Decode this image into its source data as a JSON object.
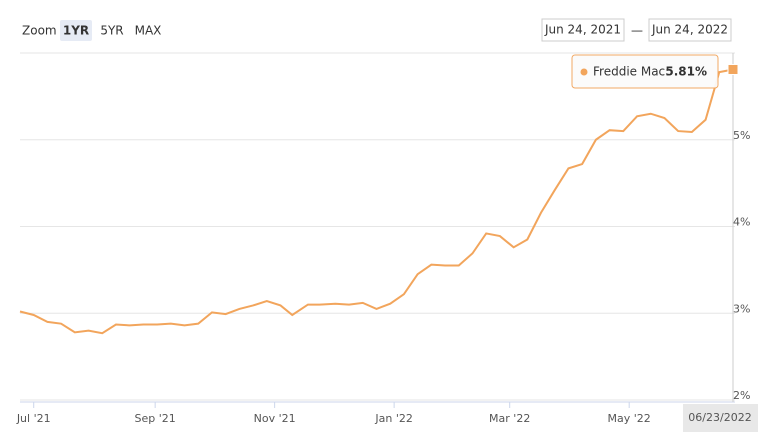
{
  "range_selector": {
    "zoom_label": "Zoom",
    "buttons": [
      "1YR",
      "5YR",
      "MAX"
    ],
    "active": 0,
    "from": "Jun 24, 2021",
    "separator": "—",
    "to": "Jun 24, 2022"
  },
  "chart_data": {
    "type": "line",
    "x": [
      "2021-06-24",
      "2021-07-01",
      "2021-07-08",
      "2021-07-15",
      "2021-07-22",
      "2021-07-29",
      "2021-08-05",
      "2021-08-12",
      "2021-08-19",
      "2021-08-26",
      "2021-09-02",
      "2021-09-09",
      "2021-09-16",
      "2021-09-23",
      "2021-09-30",
      "2021-10-07",
      "2021-10-14",
      "2021-10-21",
      "2021-10-28",
      "2021-11-04",
      "2021-11-10",
      "2021-11-18",
      "2021-11-24",
      "2021-12-02",
      "2021-12-09",
      "2021-12-16",
      "2021-12-23",
      "2021-12-30",
      "2022-01-06",
      "2022-01-13",
      "2022-01-20",
      "2022-01-27",
      "2022-02-03",
      "2022-02-10",
      "2022-02-17",
      "2022-02-24",
      "2022-03-03",
      "2022-03-10",
      "2022-03-17",
      "2022-03-24",
      "2022-03-31",
      "2022-04-07",
      "2022-04-14",
      "2022-04-21",
      "2022-04-28",
      "2022-05-05",
      "2022-05-12",
      "2022-05-19",
      "2022-05-26",
      "2022-06-02",
      "2022-06-09",
      "2022-06-16",
      "2022-06-23"
    ],
    "series": [
      {
        "name": "Freddie Mac",
        "color": "#f2a55c",
        "values": [
          3.02,
          2.98,
          2.9,
          2.88,
          2.78,
          2.8,
          2.77,
          2.87,
          2.86,
          2.87,
          2.87,
          2.88,
          2.86,
          2.88,
          3.01,
          2.99,
          3.05,
          3.09,
          3.14,
          3.09,
          2.98,
          3.1,
          3.1,
          3.11,
          3.1,
          3.12,
          3.05,
          3.11,
          3.22,
          3.45,
          3.56,
          3.55,
          3.55,
          3.69,
          3.92,
          3.89,
          3.76,
          3.85,
          4.16,
          4.42,
          4.67,
          4.72,
          5.0,
          5.11,
          5.1,
          5.27,
          5.3,
          5.25,
          5.1,
          5.09,
          5.23,
          5.78,
          5.81
        ]
      }
    ],
    "xlim": [
      "2021-06-24",
      "2022-06-23"
    ],
    "xticks": [
      {
        "value": "2021-07-01",
        "label": "Jul '21"
      },
      {
        "value": "2021-09-01",
        "label": "Sep '21"
      },
      {
        "value": "2021-11-01",
        "label": "Nov '21"
      },
      {
        "value": "2022-01-01",
        "label": "Jan '22"
      },
      {
        "value": "2022-03-01",
        "label": "Mar '22"
      },
      {
        "value": "2022-05-01",
        "label": "May '22"
      }
    ],
    "ylim": [
      2,
      6
    ],
    "yticks": [
      {
        "value": 2,
        "label": "2%"
      },
      {
        "value": 3,
        "label": "3%"
      },
      {
        "value": 4,
        "label": "4%"
      },
      {
        "value": 5,
        "label": "5%"
      }
    ],
    "grid": true,
    "tooltip": {
      "label": "Freddie Mac:",
      "value": "5.81%"
    },
    "crosshair_label": "06/23/2022"
  }
}
